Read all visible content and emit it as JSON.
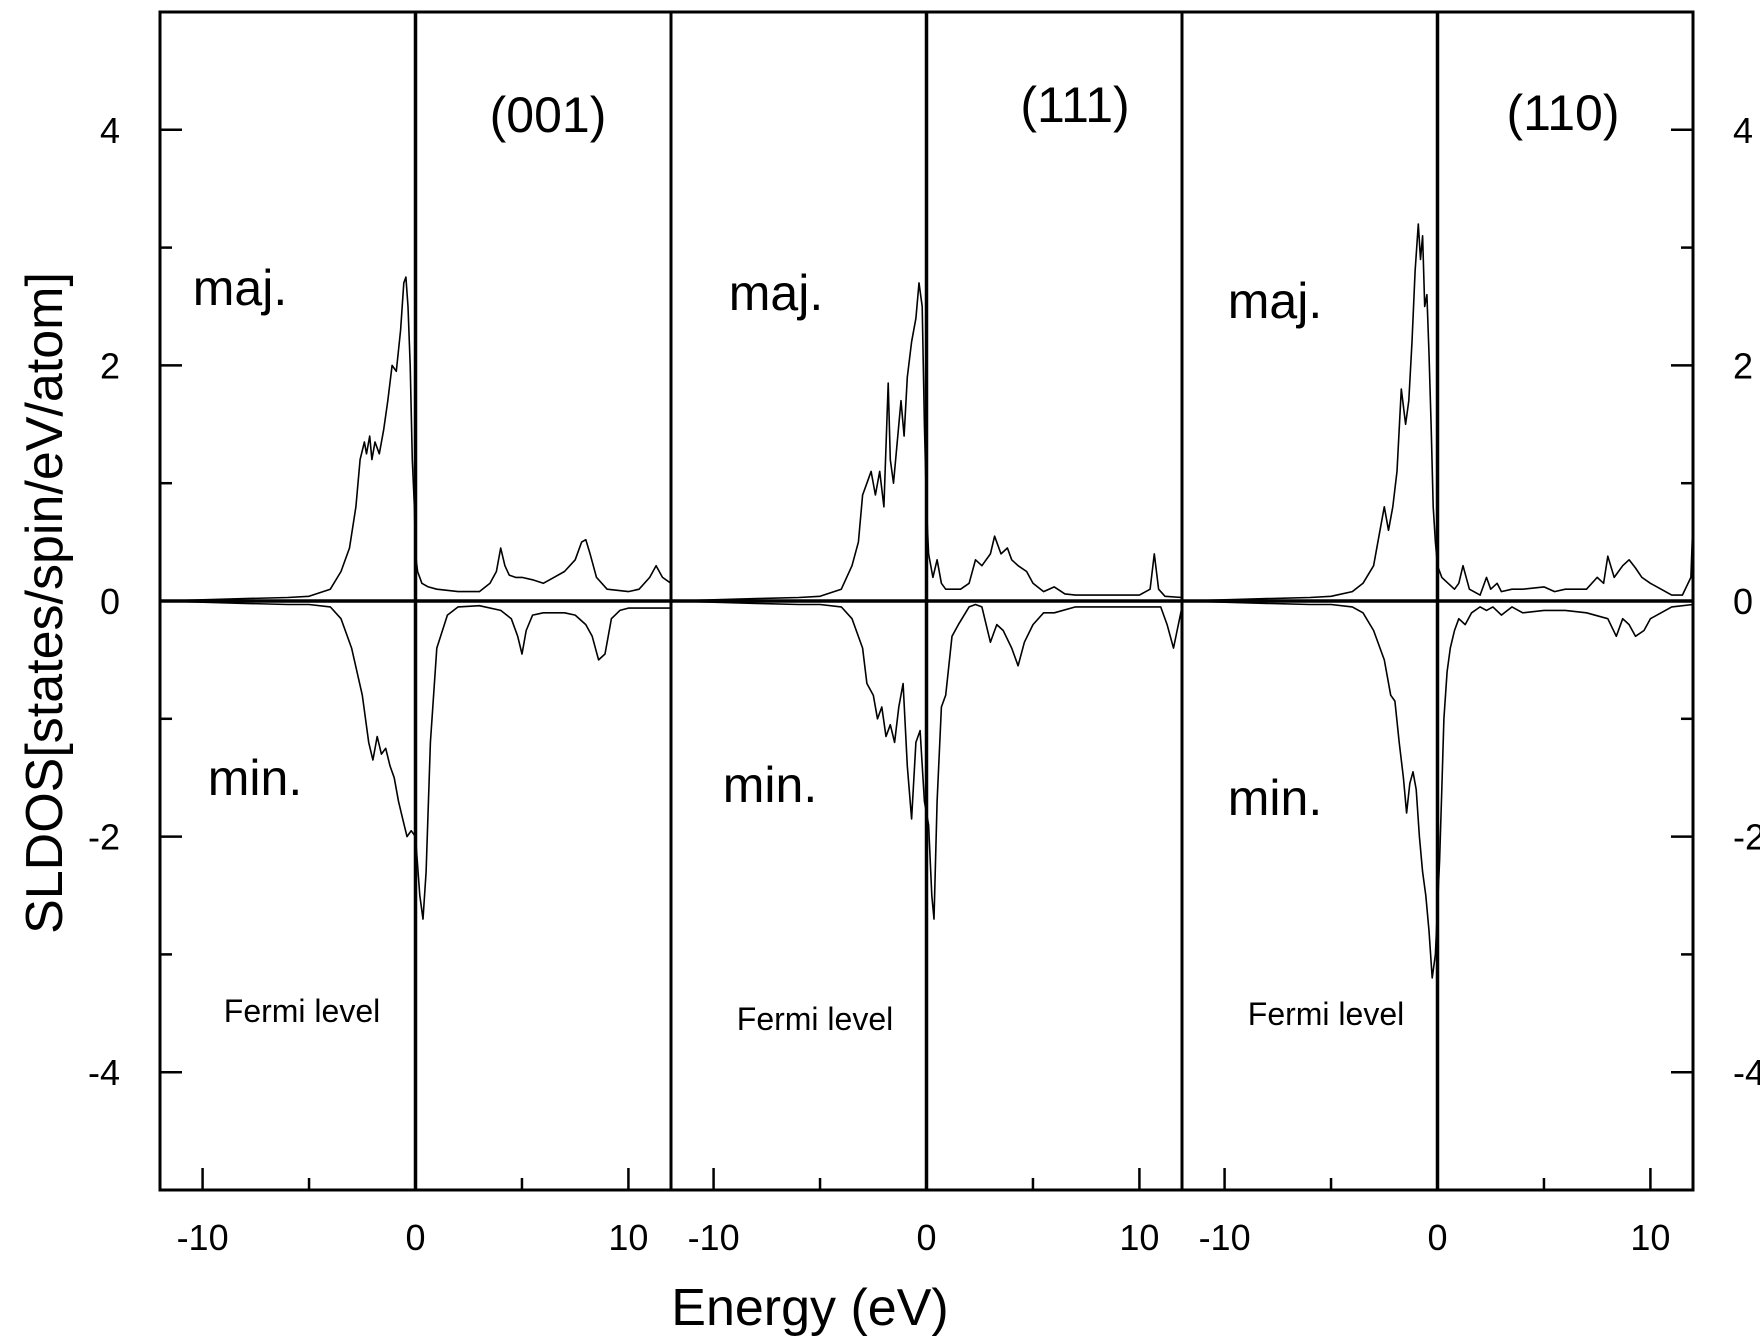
{
  "chart_data": {
    "type": "line",
    "xlabel": "Energy (eV)",
    "ylabel": "SLDOS[states/spin/eV/atom]",
    "ylim": [
      -5,
      5
    ],
    "yticks": [
      -4,
      -2,
      0,
      2,
      4
    ],
    "ytick_labels": [
      "-4",
      "-2",
      "0",
      "2",
      "4"
    ],
    "grid": false,
    "panels": [
      {
        "title": "(001)",
        "xlim": [
          -12,
          12
        ],
        "xticks": [
          -10,
          0,
          10
        ],
        "xtick_labels": [
          "-10",
          "0",
          "10"
        ],
        "annotations": [
          "maj.",
          "min.",
          "Fermi level"
        ],
        "series": [
          {
            "name": "maj.",
            "x": [
              -12,
              -10,
              -8,
              -6,
              -5,
              -4,
              -3.5,
              -3.1,
              -2.8,
              -2.6,
              -2.4,
              -2.3,
              -2.15,
              -2.05,
              -1.9,
              -1.7,
              -1.5,
              -1.3,
              -1.1,
              -0.9,
              -0.7,
              -0.55,
              -0.45,
              -0.35,
              -0.25,
              -0.15,
              -0.05,
              0,
              0.1,
              0.3,
              0.6,
              1,
              2,
              3,
              3.5,
              3.8,
              4,
              4.2,
              4.4,
              4.7,
              5,
              5.5,
              6,
              6.5,
              7,
              7.5,
              7.8,
              8,
              8.2,
              8.5,
              9,
              10,
              10.5,
              11,
              11.3,
              11.6,
              12
            ],
            "y": [
              0,
              0.01,
              0.02,
              0.03,
              0.04,
              0.1,
              0.25,
              0.45,
              0.8,
              1.2,
              1.35,
              1.25,
              1.4,
              1.2,
              1.35,
              1.25,
              1.45,
              1.7,
              2.0,
              1.95,
              2.3,
              2.7,
              2.75,
              2.5,
              2.0,
              1.2,
              0.8,
              0.4,
              0.25,
              0.15,
              0.12,
              0.1,
              0.08,
              0.08,
              0.15,
              0.25,
              0.45,
              0.3,
              0.22,
              0.2,
              0.2,
              0.18,
              0.15,
              0.2,
              0.25,
              0.35,
              0.5,
              0.52,
              0.4,
              0.2,
              0.1,
              0.08,
              0.1,
              0.2,
              0.3,
              0.2,
              0.15
            ]
          },
          {
            "name": "min.",
            "x": [
              -12,
              -10,
              -8,
              -6,
              -5,
              -4,
              -3.5,
              -3,
              -2.5,
              -2.2,
              -2,
              -1.8,
              -1.6,
              -1.4,
              -1.2,
              -1,
              -0.8,
              -0.6,
              -0.4,
              -0.2,
              0,
              0.2,
              0.35,
              0.5,
              0.7,
              1,
              1.5,
              2,
              3,
              4,
              4.5,
              4.8,
              5,
              5.2,
              5.5,
              6,
              7,
              7.5,
              8,
              8.3,
              8.6,
              8.9,
              9.2,
              9.6,
              10,
              11,
              12
            ],
            "y": [
              0,
              -0.01,
              -0.02,
              -0.03,
              -0.03,
              -0.05,
              -0.15,
              -0.4,
              -0.8,
              -1.2,
              -1.35,
              -1.15,
              -1.3,
              -1.25,
              -1.4,
              -1.5,
              -1.7,
              -1.85,
              -2.0,
              -1.95,
              -2.0,
              -2.5,
              -2.7,
              -2.3,
              -1.2,
              -0.4,
              -0.12,
              -0.05,
              -0.04,
              -0.08,
              -0.15,
              -0.3,
              -0.45,
              -0.25,
              -0.12,
              -0.1,
              -0.1,
              -0.12,
              -0.2,
              -0.3,
              -0.5,
              -0.45,
              -0.15,
              -0.08,
              -0.06,
              -0.06,
              -0.06
            ]
          }
        ]
      },
      {
        "title": "(111)",
        "xlim": [
          -12,
          12
        ],
        "xticks": [
          -10,
          0,
          10
        ],
        "xtick_labels": [
          "-10",
          "0",
          "10"
        ],
        "annotations": [
          "maj.",
          "min.",
          "Fermi level"
        ],
        "series": [
          {
            "name": "maj.",
            "x": [
              -12,
              -10,
              -8,
              -6,
              -5,
              -4,
              -3.5,
              -3.2,
              -3,
              -2.8,
              -2.6,
              -2.4,
              -2.2,
              -2,
              -1.8,
              -1.7,
              -1.55,
              -1.4,
              -1.2,
              -1.05,
              -0.9,
              -0.7,
              -0.5,
              -0.35,
              -0.2,
              -0.1,
              0,
              0.1,
              0.3,
              0.5,
              0.7,
              0.9,
              1.2,
              1.6,
              2,
              2.3,
              2.6,
              3,
              3.2,
              3.5,
              3.8,
              4,
              4.3,
              4.7,
              5,
              5.5,
              6,
              6.5,
              7,
              8,
              9,
              10,
              10.5,
              10.7,
              10.9,
              11.2,
              12
            ],
            "y": [
              0,
              0.01,
              0.02,
              0.03,
              0.04,
              0.1,
              0.3,
              0.5,
              0.9,
              1.0,
              1.1,
              0.9,
              1.1,
              0.8,
              1.85,
              1.2,
              1.0,
              1.3,
              1.7,
              1.4,
              1.9,
              2.2,
              2.4,
              2.7,
              2.5,
              1.5,
              0.8,
              0.4,
              0.2,
              0.35,
              0.15,
              0.1,
              0.1,
              0.1,
              0.15,
              0.35,
              0.3,
              0.4,
              0.55,
              0.4,
              0.45,
              0.35,
              0.3,
              0.25,
              0.15,
              0.08,
              0.12,
              0.06,
              0.05,
              0.05,
              0.05,
              0.05,
              0.1,
              0.4,
              0.1,
              0.04,
              0.03
            ]
          },
          {
            "name": "min.",
            "x": [
              -12,
              -10,
              -8,
              -6,
              -5,
              -4,
              -3.5,
              -3,
              -2.8,
              -2.5,
              -2.3,
              -2.1,
              -1.9,
              -1.7,
              -1.5,
              -1.3,
              -1.1,
              -0.9,
              -0.7,
              -0.5,
              -0.3,
              -0.1,
              0,
              0.1,
              0.25,
              0.35,
              0.5,
              0.7,
              0.9,
              1.2,
              1.5,
              2,
              2.3,
              2.6,
              3,
              3.3,
              3.6,
              4,
              4.3,
              4.6,
              5,
              5.5,
              6,
              7,
              8,
              9,
              10,
              11,
              11.3,
              11.6,
              12
            ],
            "y": [
              0,
              -0.01,
              -0.02,
              -0.03,
              -0.03,
              -0.05,
              -0.15,
              -0.4,
              -0.7,
              -0.8,
              -1.0,
              -0.9,
              -1.15,
              -1.05,
              -1.2,
              -0.9,
              -0.7,
              -1.4,
              -1.85,
              -1.2,
              -1.1,
              -1.7,
              -1.8,
              -1.9,
              -2.5,
              -2.7,
              -1.7,
              -0.9,
              -0.8,
              -0.3,
              -0.2,
              -0.05,
              -0.03,
              -0.05,
              -0.35,
              -0.2,
              -0.25,
              -0.4,
              -0.55,
              -0.35,
              -0.2,
              -0.1,
              -0.1,
              -0.05,
              -0.05,
              -0.05,
              -0.05,
              -0.05,
              -0.2,
              -0.4,
              -0.05
            ]
          }
        ]
      },
      {
        "title": "(110)",
        "xlim": [
          -12,
          12
        ],
        "xticks": [
          -10,
          0,
          10
        ],
        "xtick_labels": [
          "-10",
          "0",
          "10"
        ],
        "annotations": [
          "maj.",
          "min.",
          "Fermi level"
        ],
        "series": [
          {
            "name": "maj.",
            "x": [
              -12,
              -10,
              -8,
              -6,
              -5,
              -4,
              -3.5,
              -3,
              -2.7,
              -2.5,
              -2.3,
              -2.1,
              -1.9,
              -1.7,
              -1.5,
              -1.35,
              -1.2,
              -1.05,
              -0.9,
              -0.8,
              -0.7,
              -0.6,
              -0.5,
              -0.4,
              -0.3,
              -0.2,
              -0.1,
              0,
              0.2,
              0.5,
              0.8,
              1,
              1.2,
              1.5,
              2,
              2.3,
              2.5,
              2.8,
              3,
              3.5,
              4,
              5,
              5.5,
              6,
              7,
              7.5,
              7.8,
              8,
              8.3,
              8.7,
              9,
              9.3,
              9.6,
              10,
              10.5,
              11,
              11.5,
              11.9,
              12
            ],
            "y": [
              0,
              0.01,
              0.02,
              0.03,
              0.04,
              0.08,
              0.15,
              0.3,
              0.6,
              0.8,
              0.6,
              0.8,
              1.1,
              1.8,
              1.5,
              1.7,
              2.2,
              2.8,
              3.2,
              2.9,
              3.1,
              2.5,
              2.6,
              2.1,
              1.5,
              0.8,
              0.5,
              0.3,
              0.2,
              0.15,
              0.1,
              0.15,
              0.3,
              0.1,
              0.05,
              0.2,
              0.1,
              0.15,
              0.08,
              0.1,
              0.1,
              0.12,
              0.08,
              0.1,
              0.1,
              0.2,
              0.15,
              0.38,
              0.2,
              0.3,
              0.35,
              0.28,
              0.2,
              0.15,
              0.1,
              0.05,
              0.05,
              0.2,
              0.7
            ]
          },
          {
            "name": "min.",
            "x": [
              -12,
              -10,
              -8,
              -6,
              -5,
              -4,
              -3.5,
              -3,
              -2.5,
              -2.2,
              -2,
              -1.8,
              -1.6,
              -1.45,
              -1.3,
              -1.15,
              -1,
              -0.85,
              -0.7,
              -0.55,
              -0.4,
              -0.25,
              -0.1,
              0,
              0.1,
              0.2,
              0.3,
              0.45,
              0.6,
              0.8,
              1,
              1.3,
              1.6,
              2,
              2.3,
              2.6,
              3,
              3.5,
              4,
              5,
              6,
              7,
              8,
              8.4,
              8.7,
              9,
              9.3,
              9.7,
              10,
              10.5,
              11,
              12
            ],
            "y": [
              0,
              -0.01,
              -0.02,
              -0.03,
              -0.03,
              -0.05,
              -0.1,
              -0.25,
              -0.5,
              -0.8,
              -0.85,
              -1.2,
              -1.5,
              -1.8,
              -1.55,
              -1.45,
              -1.6,
              -2.0,
              -2.3,
              -2.5,
              -2.8,
              -3.2,
              -3.0,
              -2.6,
              -2.2,
              -1.6,
              -1.0,
              -0.6,
              -0.4,
              -0.25,
              -0.15,
              -0.2,
              -0.1,
              -0.05,
              -0.08,
              -0.05,
              -0.12,
              -0.05,
              -0.1,
              -0.08,
              -0.08,
              -0.1,
              -0.15,
              -0.3,
              -0.15,
              -0.2,
              -0.3,
              -0.25,
              -0.15,
              -0.1,
              -0.05,
              -0.03
            ]
          }
        ]
      }
    ]
  }
}
